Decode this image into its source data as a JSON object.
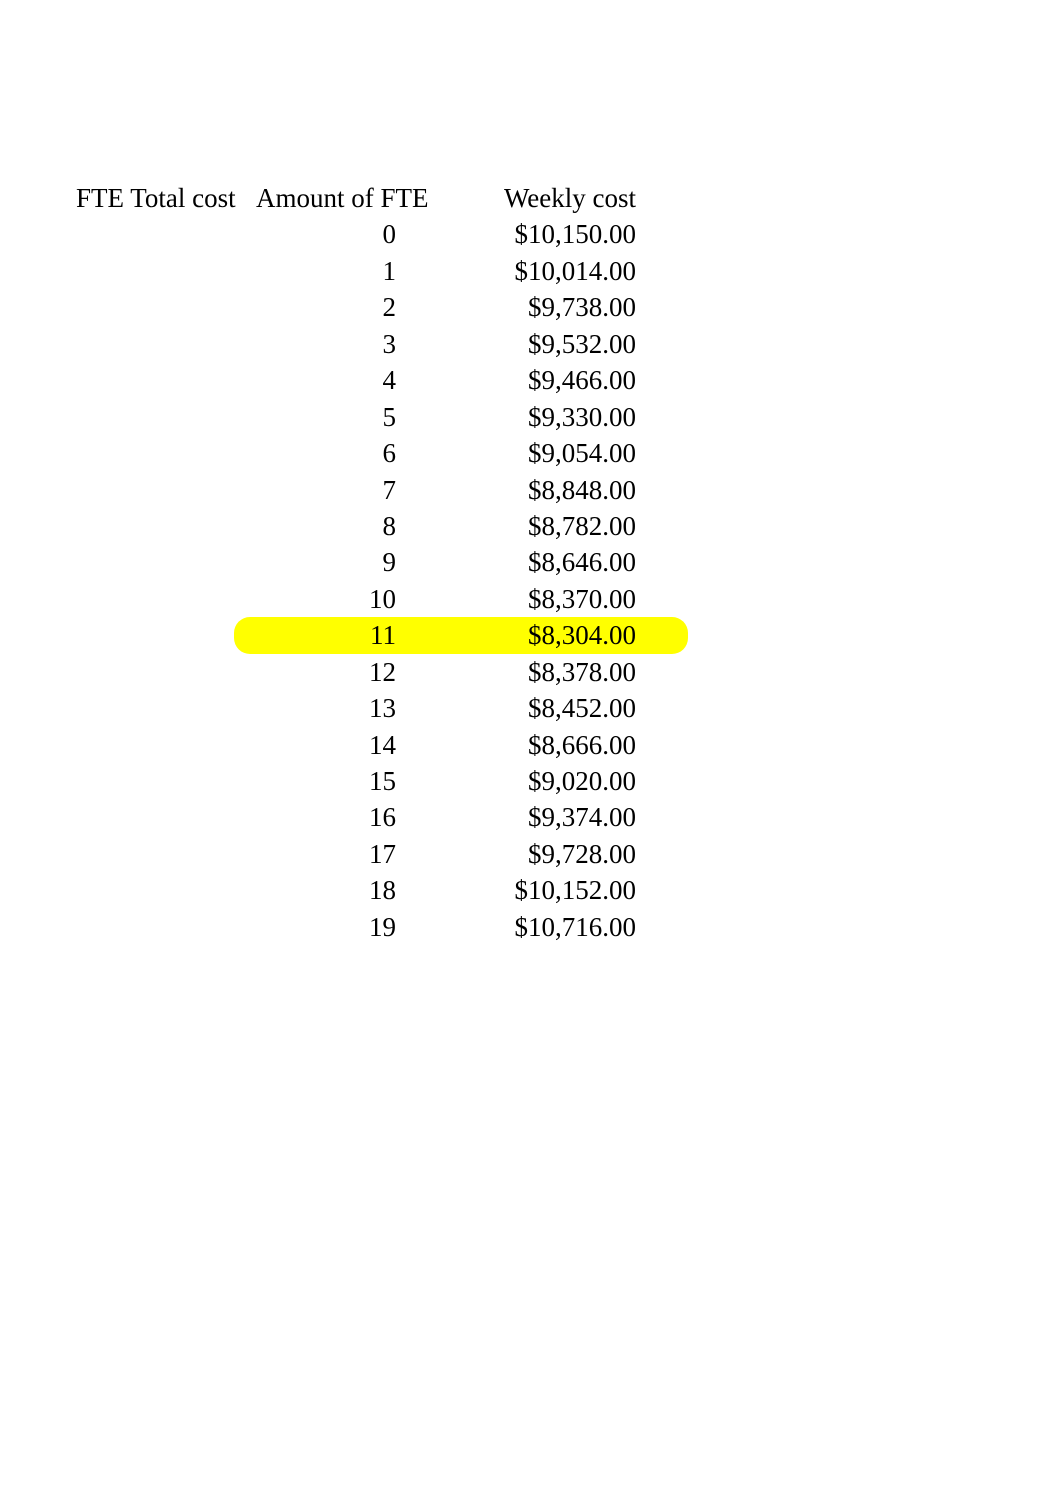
{
  "table": {
    "columns": {
      "a": "FTE Total cost",
      "b": "Amount of FTE",
      "c": "Weekly cost"
    },
    "rows": [
      {
        "fte": "0",
        "cost": "$10,150.00",
        "highlight": false
      },
      {
        "fte": "1",
        "cost": "$10,014.00",
        "highlight": false
      },
      {
        "fte": "2",
        "cost": "$9,738.00",
        "highlight": false
      },
      {
        "fte": "3",
        "cost": "$9,532.00",
        "highlight": false
      },
      {
        "fte": "4",
        "cost": "$9,466.00",
        "highlight": false
      },
      {
        "fte": "5",
        "cost": "$9,330.00",
        "highlight": false
      },
      {
        "fte": "6",
        "cost": "$9,054.00",
        "highlight": false
      },
      {
        "fte": "7",
        "cost": "$8,848.00",
        "highlight": false
      },
      {
        "fte": "8",
        "cost": "$8,782.00",
        "highlight": false
      },
      {
        "fte": "9",
        "cost": "$8,646.00",
        "highlight": false
      },
      {
        "fte": "10",
        "cost": "$8,370.00",
        "highlight": false
      },
      {
        "fte": "11",
        "cost": "$8,304.00",
        "highlight": true
      },
      {
        "fte": "12",
        "cost": "$8,378.00",
        "highlight": false
      },
      {
        "fte": "13",
        "cost": "$8,452.00",
        "highlight": false
      },
      {
        "fte": "14",
        "cost": "$8,666.00",
        "highlight": false
      },
      {
        "fte": "15",
        "cost": "$9,020.00",
        "highlight": false
      },
      {
        "fte": "16",
        "cost": "$9,374.00",
        "highlight": false
      },
      {
        "fte": "17",
        "cost": "$9,728.00",
        "highlight": false
      },
      {
        "fte": "18",
        "cost": "$10,152.00",
        "highlight": false
      },
      {
        "fte": "19",
        "cost": "$10,716.00",
        "highlight": false
      }
    ],
    "highlight_color": "#ffff00",
    "background_color": "#ffffff",
    "text_color": "#000000",
    "font_family": "Times New Roman",
    "font_size_pt": 20
  }
}
